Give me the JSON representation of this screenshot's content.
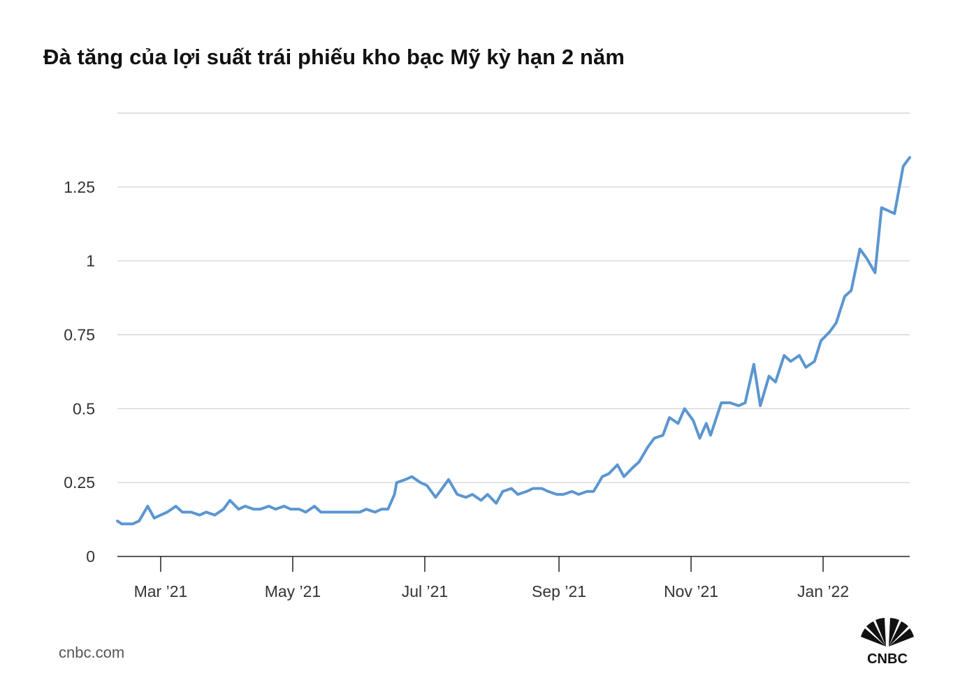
{
  "title": "Đà tăng của lợi suất trái phiếu kho bạc Mỹ kỳ hạn 2 năm",
  "source": "cnbc.com",
  "logo_text": "CNBC",
  "chart_data": {
    "type": "line",
    "title": "Đà tăng của lợi suất trái phiếu kho bạc Mỹ kỳ hạn 2 năm",
    "xlabel": "",
    "ylabel": "",
    "xlim": [
      "2021-02-09",
      "2022-02-10"
    ],
    "ylim": [
      0,
      1.5
    ],
    "grid": true,
    "line_color": "#5b96d0",
    "y_ticks": [
      {
        "value": 0,
        "label": "0"
      },
      {
        "value": 0.25,
        "label": "0.25"
      },
      {
        "value": 0.5,
        "label": "0.5"
      },
      {
        "value": 0.75,
        "label": "0.75"
      },
      {
        "value": 1,
        "label": "1"
      },
      {
        "value": 1.25,
        "label": "1.25"
      },
      {
        "value": 1.5,
        "label": ""
      }
    ],
    "x_ticks": [
      {
        "date": "2021-03-01",
        "label": "Mar ’21"
      },
      {
        "date": "2021-05-01",
        "label": "May ’21"
      },
      {
        "date": "2021-07-01",
        "label": "Jul ’21"
      },
      {
        "date": "2021-09-01",
        "label": "Sep ’21"
      },
      {
        "date": "2021-11-01",
        "label": "Nov ’21"
      },
      {
        "date": "2022-01-01",
        "label": "Jan ’22"
      }
    ],
    "series": [
      {
        "x": [
          "2021-02-09",
          "2021-02-11",
          "2021-02-16",
          "2021-02-19",
          "2021-02-23",
          "2021-02-26",
          "2021-03-01",
          "2021-03-04",
          "2021-03-08",
          "2021-03-11",
          "2021-03-15",
          "2021-03-19",
          "2021-03-22",
          "2021-03-26",
          "2021-03-30",
          "2021-04-02",
          "2021-04-06",
          "2021-04-09",
          "2021-04-13",
          "2021-04-16",
          "2021-04-20",
          "2021-04-23",
          "2021-04-27",
          "2021-04-30",
          "2021-05-04",
          "2021-05-07",
          "2021-05-11",
          "2021-05-14",
          "2021-05-18",
          "2021-05-21",
          "2021-05-25",
          "2021-05-28",
          "2021-06-01",
          "2021-06-04",
          "2021-06-08",
          "2021-06-11",
          "2021-06-14",
          "2021-06-17",
          "2021-06-18",
          "2021-06-22",
          "2021-06-25",
          "2021-06-29",
          "2021-07-02",
          "2021-07-06",
          "2021-07-09",
          "2021-07-12",
          "2021-07-16",
          "2021-07-20",
          "2021-07-23",
          "2021-07-27",
          "2021-07-30",
          "2021-08-03",
          "2021-08-06",
          "2021-08-10",
          "2021-08-13",
          "2021-08-17",
          "2021-08-20",
          "2021-08-24",
          "2021-08-27",
          "2021-08-31",
          "2021-09-03",
          "2021-09-07",
          "2021-09-10",
          "2021-09-14",
          "2021-09-17",
          "2021-09-21",
          "2021-09-24",
          "2021-09-28",
          "2021-10-01",
          "2021-10-05",
          "2021-10-08",
          "2021-10-12",
          "2021-10-15",
          "2021-10-19",
          "2021-10-22",
          "2021-10-26",
          "2021-10-29",
          "2021-11-02",
          "2021-11-05",
          "2021-11-08",
          "2021-11-10",
          "2021-11-15",
          "2021-11-19",
          "2021-11-23",
          "2021-11-26",
          "2021-11-30",
          "2021-12-03",
          "2021-12-07",
          "2021-12-10",
          "2021-12-14",
          "2021-12-17",
          "2021-12-21",
          "2021-12-24",
          "2021-12-28",
          "2021-12-31",
          "2022-01-04",
          "2022-01-07",
          "2022-01-11",
          "2022-01-14",
          "2022-01-18",
          "2022-01-21",
          "2022-01-25",
          "2022-01-28",
          "2022-01-31",
          "2022-02-03",
          "2022-02-07",
          "2022-02-10"
        ],
        "y": [
          0.12,
          0.11,
          0.11,
          0.12,
          0.17,
          0.13,
          0.14,
          0.15,
          0.17,
          0.15,
          0.15,
          0.14,
          0.15,
          0.14,
          0.16,
          0.19,
          0.16,
          0.17,
          0.16,
          0.16,
          0.17,
          0.16,
          0.17,
          0.16,
          0.16,
          0.15,
          0.17,
          0.15,
          0.15,
          0.15,
          0.15,
          0.15,
          0.15,
          0.16,
          0.15,
          0.16,
          0.16,
          0.21,
          0.25,
          0.26,
          0.27,
          0.25,
          0.24,
          0.2,
          0.23,
          0.26,
          0.21,
          0.2,
          0.21,
          0.19,
          0.21,
          0.18,
          0.22,
          0.23,
          0.21,
          0.22,
          0.23,
          0.23,
          0.22,
          0.21,
          0.21,
          0.22,
          0.21,
          0.22,
          0.22,
          0.27,
          0.28,
          0.31,
          0.27,
          0.3,
          0.32,
          0.37,
          0.4,
          0.41,
          0.47,
          0.45,
          0.5,
          0.46,
          0.4,
          0.45,
          0.41,
          0.52,
          0.52,
          0.51,
          0.52,
          0.65,
          0.51,
          0.61,
          0.59,
          0.68,
          0.66,
          0.68,
          0.64,
          0.66,
          0.73,
          0.76,
          0.79,
          0.88,
          0.9,
          1.04,
          1.01,
          0.96,
          1.18,
          1.17,
          1.16,
          1.32,
          1.35
        ]
      }
    ]
  }
}
